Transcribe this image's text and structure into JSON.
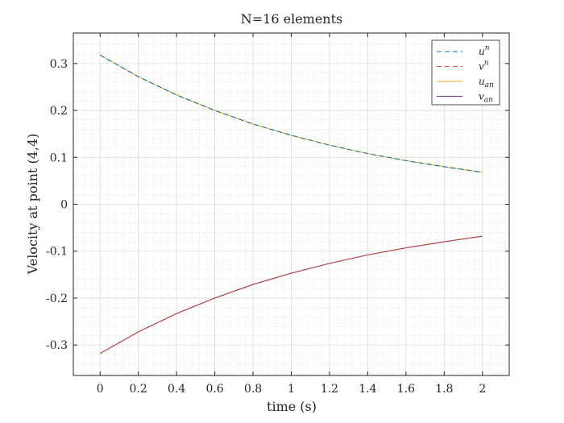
{
  "chart_data": {
    "type": "line",
    "title": "N=16 elements",
    "xlabel": "time (s)",
    "ylabel": "Velocity at point (4,4)",
    "xlim": [
      -0.14,
      2.14
    ],
    "ylim": [
      -0.365,
      0.365
    ],
    "xticks": [
      0,
      0.2,
      0.4,
      0.6,
      0.8,
      1,
      1.2,
      1.4,
      1.6,
      1.8,
      2
    ],
    "xtick_labels": [
      "0",
      "0.2",
      "0.4",
      "0.6",
      "0.8",
      "1",
      "1.2",
      "1.4",
      "1.6",
      "1.8",
      "2"
    ],
    "yticks": [
      -0.3,
      -0.2,
      -0.1,
      0,
      0.1,
      0.2,
      0.3
    ],
    "ytick_labels": [
      "-0.3",
      "-0.2",
      "-0.1",
      "0",
      "0.1",
      "0.2",
      "0.3"
    ],
    "grid": true,
    "minor_grid": true,
    "legend_position": "top-right",
    "x": [
      0,
      0.2,
      0.4,
      0.6,
      0.8,
      1.0,
      1.2,
      1.4,
      1.6,
      1.8,
      2.0
    ],
    "series": [
      {
        "name": "u",
        "sup": "n",
        "style": "dashed",
        "color": "#0072bd",
        "values": [
          0.318,
          0.272,
          0.233,
          0.2,
          0.171,
          0.147,
          0.126,
          0.108,
          0.093,
          0.08,
          0.068
        ]
      },
      {
        "name": "v",
        "sup": "n",
        "style": "dashed",
        "color": "#d95319",
        "values": [
          -0.318,
          -0.272,
          -0.233,
          -0.2,
          -0.171,
          -0.147,
          -0.126,
          -0.108,
          -0.093,
          -0.08,
          -0.068
        ]
      },
      {
        "name": "u",
        "sub": "an",
        "style": "solid",
        "color": "#edb120",
        "values": [
          0.318,
          0.272,
          0.233,
          0.2,
          0.171,
          0.147,
          0.126,
          0.108,
          0.093,
          0.08,
          0.068
        ]
      },
      {
        "name": "v",
        "sub": "an",
        "style": "solid",
        "color": "#7e2f8e",
        "values": [
          -0.318,
          -0.272,
          -0.233,
          -0.2,
          -0.171,
          -0.147,
          -0.126,
          -0.108,
          -0.093,
          -0.08,
          -0.068
        ]
      }
    ]
  }
}
